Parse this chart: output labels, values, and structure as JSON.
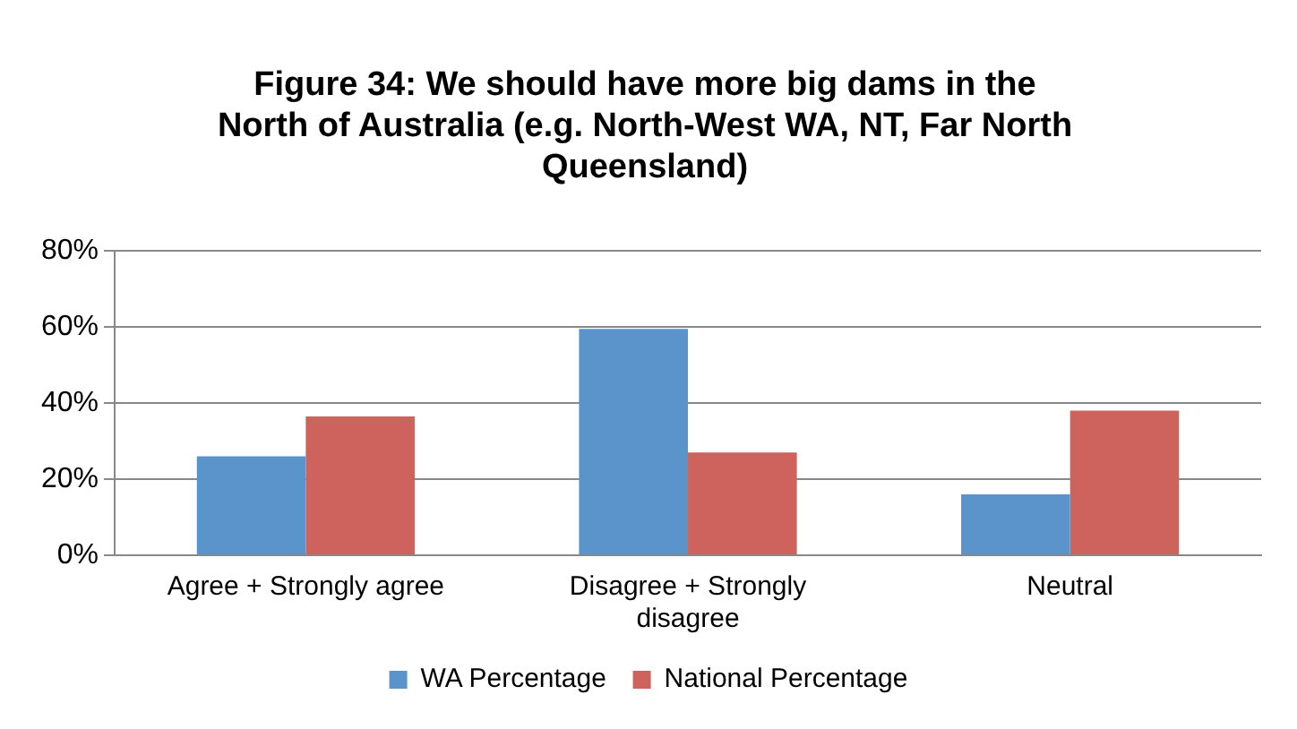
{
  "chart_data": {
    "type": "bar",
    "title": "Figure 34: We should have more big dams in the North of Australia (e.g. North-West WA, NT, Far North Queensland)",
    "categories": [
      "Agree + Strongly agree",
      "Disagree + Strongly disagree",
      "Neutral"
    ],
    "series": [
      {
        "name": "WA Percentage",
        "color": "#5b93cb",
        "values": [
          26,
          59.5,
          16
        ]
      },
      {
        "name": "National Percentage",
        "color": "#cd635c",
        "values": [
          36.5,
          27,
          38
        ]
      }
    ],
    "ylim": [
      0,
      80
    ],
    "yticks": [
      {
        "value": 0,
        "label": "0%"
      },
      {
        "value": 20,
        "label": "20%"
      },
      {
        "value": 40,
        "label": "40%"
      },
      {
        "value": 60,
        "label": "60%"
      },
      {
        "value": 80,
        "label": "80%"
      }
    ],
    "grid": "y",
    "legend": "bottom"
  }
}
